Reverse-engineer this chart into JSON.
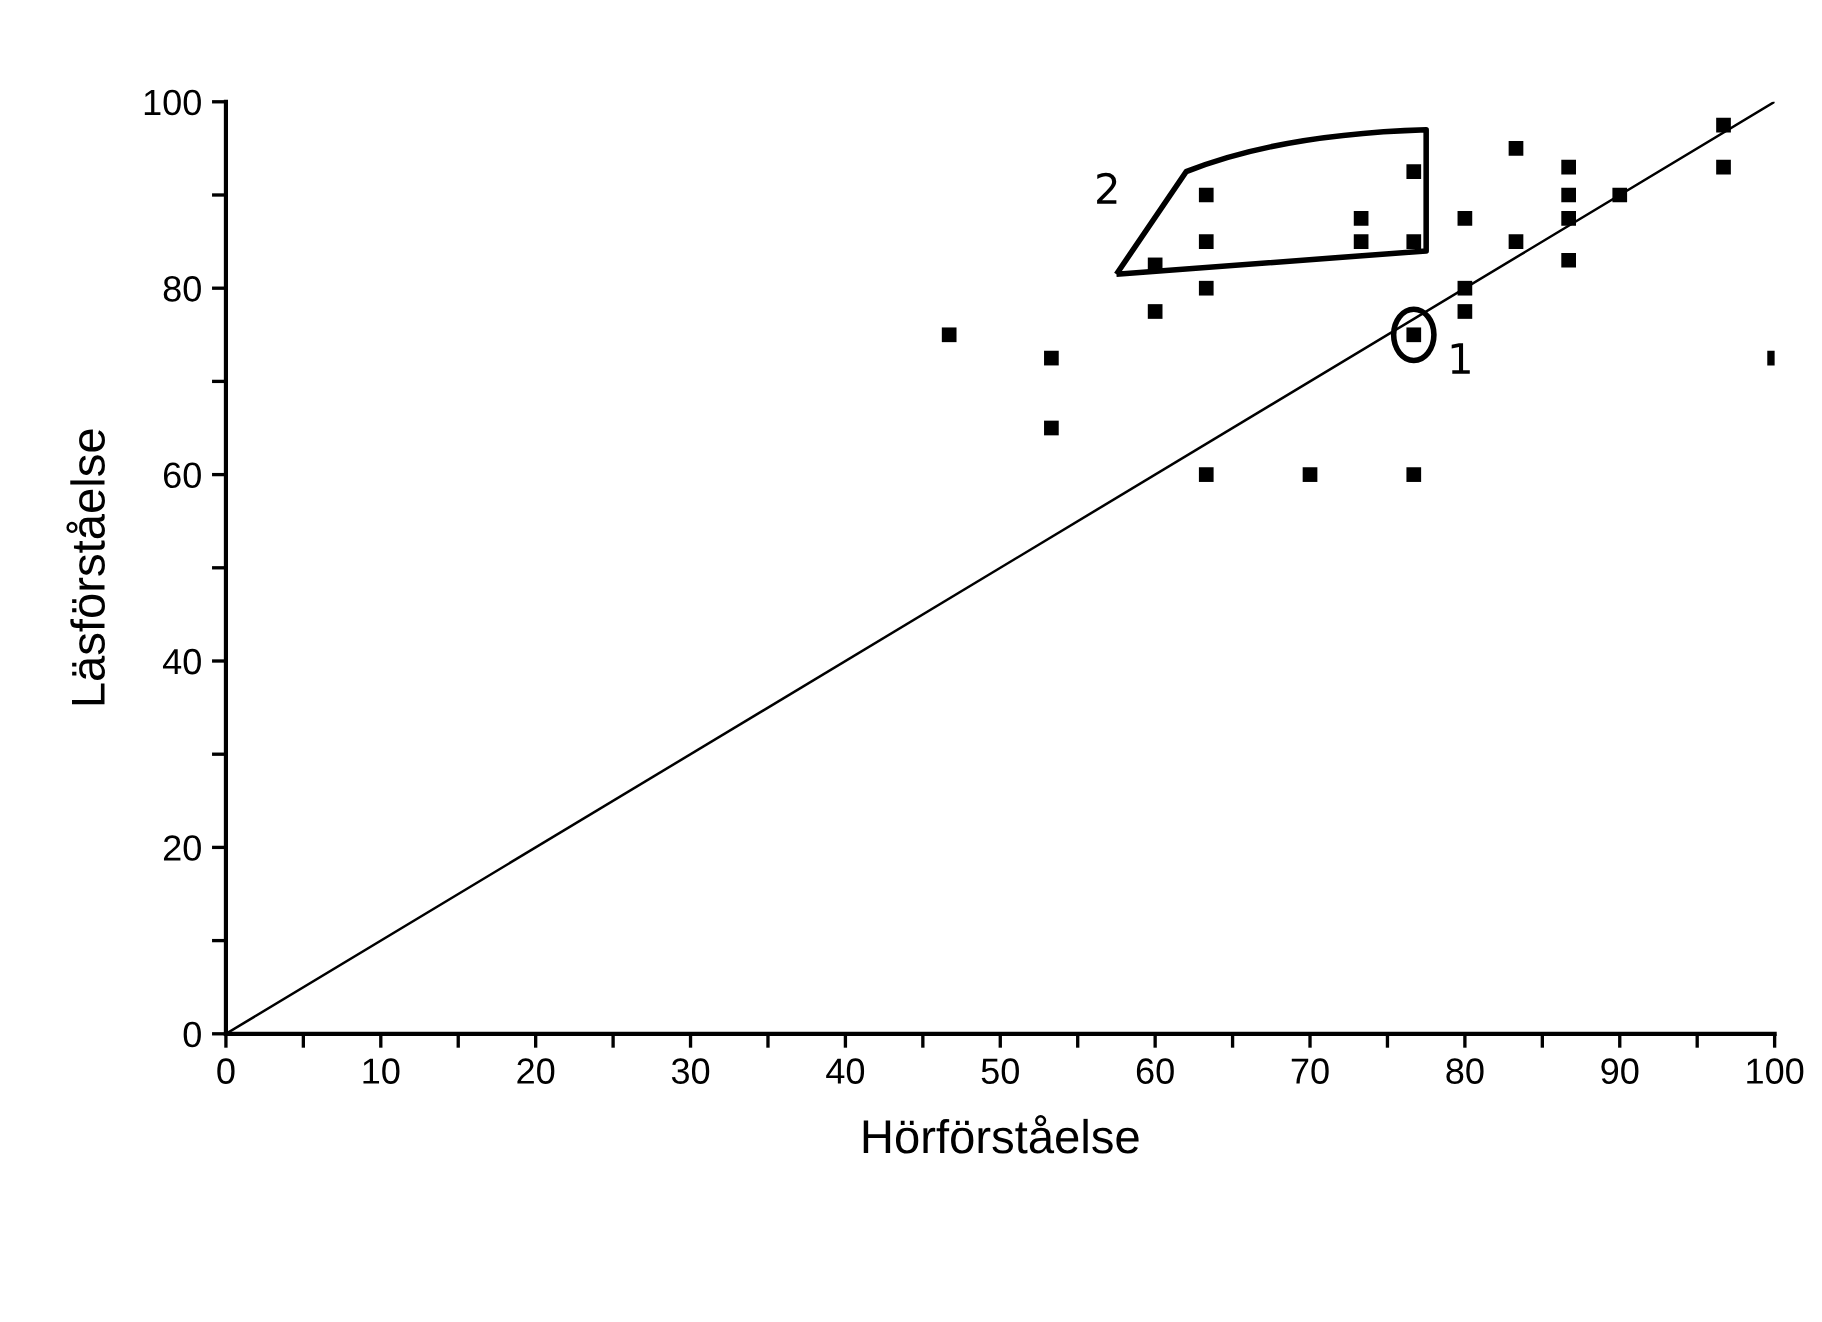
{
  "chart_data": {
    "type": "scatter",
    "xlabel": "Hörförståelse",
    "ylabel": "Läsförståelse",
    "xlim": [
      0,
      100
    ],
    "ylim": [
      0,
      100
    ],
    "xticks": [
      0,
      {
        "value": 5,
        "label": null
      },
      10,
      {
        "value": 15,
        "label": null
      },
      20,
      {
        "value": 25,
        "label": null
      },
      30,
      {
        "value": 35,
        "label": null
      },
      40,
      {
        "value": 45,
        "label": null
      },
      50,
      {
        "value": 55,
        "label": null
      },
      60,
      {
        "value": 65,
        "label": null
      },
      70,
      {
        "value": 75,
        "label": null
      },
      80,
      {
        "value": 85,
        "label": null
      },
      90,
      {
        "value": 95,
        "label": null
      },
      100
    ],
    "yticks": [
      0,
      {
        "value": 10,
        "label": null
      },
      20,
      {
        "value": 30,
        "label": null
      },
      40,
      {
        "value": 50,
        "label": null
      },
      60,
      {
        "value": 70,
        "label": null
      },
      80,
      {
        "value": 90,
        "label": null
      },
      100
    ],
    "grid": false,
    "legend": false,
    "marker": "square",
    "series": [
      {
        "color": "#000000",
        "x": [
          96.7,
          96.7,
          83.3,
          86.7,
          86.7,
          86.7,
          86.7,
          90,
          76.7,
          63.3,
          73.3,
          73.3,
          76.7,
          63.3,
          80,
          83.3,
          60,
          63.3,
          80,
          80,
          60,
          76.7,
          46.7,
          100,
          53.3,
          53.3,
          63.3,
          70,
          76.7
        ],
        "values": [
          97.5,
          93,
          95,
          93,
          90,
          87.5,
          83,
          90,
          92.5,
          90,
          87.5,
          85,
          85,
          85,
          87.5,
          85,
          82.5,
          80,
          80,
          77.5,
          77.5,
          75,
          75,
          72.5,
          72.5,
          65,
          60,
          60,
          60
        ]
      },
      {
        "type": "line",
        "color": "#000000",
        "marker": "none",
        "line_style": "solid",
        "x": [
          0,
          100
        ],
        "values": [
          0,
          100
        ]
      }
    ],
    "annotations": [
      {
        "text": "1",
        "x": 76.7,
        "y": 75
      },
      {
        "text": "2",
        "x": 60,
        "y": 82.5
      }
    ]
  }
}
